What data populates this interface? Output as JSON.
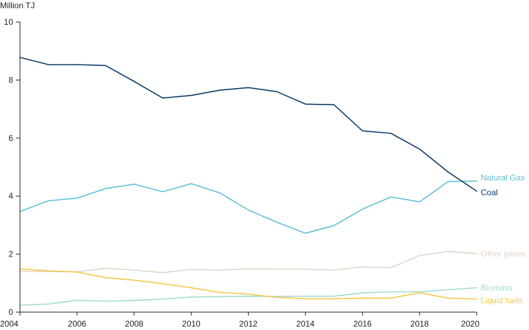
{
  "chart_data": {
    "type": "line",
    "title": "",
    "ylabel": "Million TJ",
    "xlabel": "",
    "xlim": [
      2004,
      2020
    ],
    "ylim": [
      0,
      10
    ],
    "x": [
      2004,
      2005,
      2006,
      2007,
      2008,
      2009,
      2010,
      2011,
      2012,
      2013,
      2014,
      2015,
      2016,
      2017,
      2018,
      2019,
      2020
    ],
    "x_ticks": [
      2004,
      2006,
      2008,
      2010,
      2012,
      2014,
      2016,
      2018,
      2020
    ],
    "x_tick_labels": [
      "2004",
      "2006",
      "2008",
      "2010",
      "2012",
      "2014",
      "2016",
      "2018",
      "2020"
    ],
    "y_ticks": [
      0,
      2,
      4,
      6,
      8,
      10
    ],
    "y_tick_labels": [
      "0",
      "2",
      "4",
      "6",
      "8",
      "10"
    ],
    "grid": false,
    "legend": "inline labels at line ends (right)",
    "series": [
      {
        "name": "Coal",
        "color": "#0b3b66",
        "values": [
          8.78,
          8.53,
          8.53,
          8.5,
          7.95,
          7.38,
          7.47,
          7.65,
          7.74,
          7.6,
          7.17,
          7.15,
          6.25,
          6.16,
          5.62,
          4.83,
          4.17
        ]
      },
      {
        "name": "Natural Gas",
        "color": "#5bc0d4",
        "values": [
          3.47,
          3.84,
          3.93,
          4.26,
          4.41,
          4.15,
          4.43,
          4.11,
          3.52,
          3.1,
          2.72,
          2.98,
          3.55,
          3.97,
          3.8,
          4.5,
          4.52
        ]
      },
      {
        "name": "Other gases",
        "color": "#e3d4c8",
        "values": [
          1.41,
          1.4,
          1.39,
          1.51,
          1.45,
          1.36,
          1.47,
          1.45,
          1.49,
          1.48,
          1.48,
          1.45,
          1.56,
          1.53,
          1.95,
          2.09,
          2.02
        ]
      },
      {
        "name": "Biomass",
        "color": "#a3dccc",
        "values": [
          0.24,
          0.28,
          0.41,
          0.38,
          0.4,
          0.45,
          0.52,
          0.53,
          0.55,
          0.54,
          0.55,
          0.55,
          0.66,
          0.7,
          0.7,
          0.77,
          0.84
        ]
      },
      {
        "name": "Liquid fuels",
        "color": "#f5c84c",
        "values": [
          1.49,
          1.42,
          1.38,
          1.19,
          1.1,
          0.98,
          0.84,
          0.68,
          0.62,
          0.51,
          0.46,
          0.46,
          0.48,
          0.48,
          0.67,
          0.48,
          0.45
        ]
      }
    ]
  }
}
